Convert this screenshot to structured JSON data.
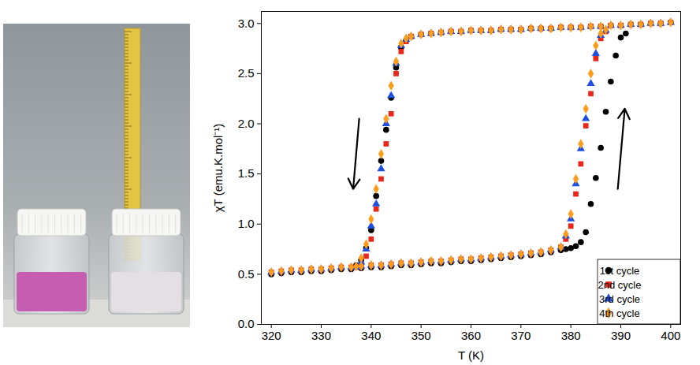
{
  "chart_data": {
    "type": "scatter",
    "xlabel": "T (K)",
    "ylabel": "χT (emu.K.mol⁻¹)",
    "xlim": [
      318,
      402
    ],
    "ylim": [
      0,
      3.12
    ],
    "xticks": [
      320,
      330,
      340,
      350,
      360,
      370,
      380,
      390,
      400
    ],
    "yticks": [
      {
        "value": 0,
        "label": "0.0"
      },
      {
        "value": 0.5,
        "label": "0.5"
      },
      {
        "value": 1,
        "label": "1.0"
      },
      {
        "value": 1.5,
        "label": "1.5"
      },
      {
        "value": 2,
        "label": "2.0"
      },
      {
        "value": 2.5,
        "label": "2.5"
      },
      {
        "value": 3,
        "label": "3.0"
      }
    ],
    "grid": false,
    "legend": "lower right",
    "arrows": [
      {
        "x1": 337.6,
        "y1": 2.05,
        "x2": 336.4,
        "y2": 1.35
      },
      {
        "x1": 389.4,
        "y1": 1.35,
        "x2": 390.8,
        "y2": 2.15
      }
    ],
    "series": [
      {
        "name": "1st cycle",
        "color": "#000000",
        "marker": "circle",
        "x": [
          320,
          322,
          324,
          326,
          328,
          330,
          332,
          334,
          336,
          338,
          340,
          342,
          344,
          346,
          348,
          350,
          352,
          354,
          356,
          358,
          360,
          362,
          364,
          366,
          368,
          370,
          372,
          374,
          376,
          378,
          379,
          380,
          381,
          382,
          383,
          384,
          385,
          386,
          387,
          388,
          389,
          390,
          391,
          400,
          398,
          396,
          394,
          392,
          390,
          388,
          386,
          384,
          382,
          380,
          378,
          376,
          374,
          372,
          370,
          368,
          366,
          364,
          362,
          360,
          358,
          356,
          354,
          352,
          350,
          348,
          347,
          346,
          345,
          344,
          343,
          342,
          341,
          340,
          339,
          338,
          337
        ],
        "values": [
          0.5,
          0.51,
          0.52,
          0.52,
          0.53,
          0.53,
          0.54,
          0.55,
          0.55,
          0.56,
          0.57,
          0.57,
          0.58,
          0.59,
          0.59,
          0.6,
          0.61,
          0.61,
          0.62,
          0.63,
          0.63,
          0.64,
          0.65,
          0.66,
          0.67,
          0.68,
          0.69,
          0.7,
          0.72,
          0.74,
          0.75,
          0.76,
          0.78,
          0.82,
          0.92,
          1.2,
          1.46,
          1.76,
          2.12,
          2.42,
          2.68,
          2.86,
          2.9,
          3.01,
          3.0,
          3.0,
          2.99,
          2.99,
          2.98,
          2.98,
          2.97,
          2.97,
          2.96,
          2.96,
          2.96,
          2.95,
          2.95,
          2.95,
          2.94,
          2.94,
          2.94,
          2.93,
          2.93,
          2.93,
          2.92,
          2.92,
          2.91,
          2.9,
          2.89,
          2.87,
          2.83,
          2.76,
          2.56,
          2.26,
          1.94,
          1.63,
          1.28,
          0.94,
          0.76,
          0.64,
          0.59
        ]
      },
      {
        "name": "2nd cycle",
        "color": "#e8261c",
        "marker": "square",
        "x": [
          320,
          322,
          324,
          326,
          328,
          330,
          332,
          334,
          336,
          338,
          340,
          342,
          344,
          346,
          348,
          350,
          352,
          354,
          356,
          358,
          360,
          362,
          364,
          366,
          368,
          370,
          372,
          374,
          376,
          378,
          379,
          380,
          381,
          382,
          383,
          384,
          385,
          386,
          387,
          400,
          398,
          396,
          394,
          392,
          390,
          388,
          386,
          384,
          382,
          380,
          378,
          376,
          374,
          372,
          370,
          368,
          366,
          364,
          362,
          360,
          358,
          356,
          354,
          352,
          350,
          348,
          347,
          346,
          345,
          344,
          343,
          342,
          341,
          340,
          339,
          338,
          337
        ],
        "values": [
          0.52,
          0.53,
          0.54,
          0.54,
          0.55,
          0.55,
          0.56,
          0.57,
          0.57,
          0.58,
          0.59,
          0.59,
          0.6,
          0.61,
          0.61,
          0.62,
          0.63,
          0.63,
          0.64,
          0.65,
          0.65,
          0.66,
          0.67,
          0.68,
          0.69,
          0.7,
          0.71,
          0.72,
          0.74,
          0.77,
          0.85,
          0.98,
          1.3,
          1.6,
          1.98,
          2.3,
          2.65,
          2.85,
          2.92,
          3.01,
          3.0,
          3.0,
          2.99,
          2.99,
          2.98,
          2.98,
          2.97,
          2.97,
          2.96,
          2.96,
          2.96,
          2.95,
          2.95,
          2.95,
          2.94,
          2.94,
          2.94,
          2.93,
          2.93,
          2.93,
          2.92,
          2.92,
          2.91,
          2.9,
          2.89,
          2.87,
          2.82,
          2.72,
          2.5,
          2.1,
          1.8,
          1.45,
          1.15,
          0.85,
          0.68,
          0.6,
          0.57
        ]
      },
      {
        "name": "3rd cycle",
        "color": "#1f4fe0",
        "marker": "triangle",
        "x": [
          320,
          322,
          324,
          326,
          328,
          330,
          332,
          334,
          336,
          338,
          340,
          342,
          344,
          346,
          348,
          350,
          352,
          354,
          356,
          358,
          360,
          362,
          364,
          366,
          368,
          370,
          372,
          374,
          376,
          378,
          379,
          380,
          381,
          382,
          383,
          384,
          385,
          386,
          387,
          400,
          398,
          396,
          394,
          392,
          390,
          388,
          386,
          384,
          382,
          380,
          378,
          376,
          374,
          372,
          370,
          368,
          366,
          364,
          362,
          360,
          358,
          356,
          354,
          352,
          350,
          348,
          347,
          346,
          345,
          344,
          343,
          342,
          341,
          340,
          339,
          338,
          337
        ],
        "values": [
          0.52,
          0.53,
          0.54,
          0.54,
          0.55,
          0.55,
          0.56,
          0.57,
          0.57,
          0.58,
          0.59,
          0.59,
          0.6,
          0.61,
          0.61,
          0.62,
          0.63,
          0.63,
          0.64,
          0.65,
          0.65,
          0.66,
          0.67,
          0.68,
          0.69,
          0.7,
          0.71,
          0.72,
          0.74,
          0.77,
          0.88,
          1.05,
          1.4,
          1.75,
          2.05,
          2.4,
          2.7,
          2.88,
          2.93,
          3.01,
          3.0,
          3.0,
          2.99,
          2.99,
          2.98,
          2.98,
          2.97,
          2.97,
          2.96,
          2.96,
          2.96,
          2.95,
          2.95,
          2.95,
          2.94,
          2.94,
          2.94,
          2.93,
          2.93,
          2.93,
          2.92,
          2.92,
          2.91,
          2.9,
          2.89,
          2.87,
          2.84,
          2.78,
          2.6,
          2.28,
          2.0,
          1.55,
          1.2,
          0.98,
          0.75,
          0.62,
          0.57
        ]
      },
      {
        "name": "4th cycle",
        "color": "#ff9d1a",
        "marker": "diamond",
        "x": [
          320,
          322,
          324,
          326,
          328,
          330,
          332,
          334,
          336,
          338,
          340,
          342,
          344,
          346,
          348,
          350,
          352,
          354,
          356,
          358,
          360,
          362,
          364,
          366,
          368,
          370,
          372,
          374,
          376,
          378,
          379,
          380,
          381,
          382,
          383,
          384,
          385,
          386,
          387,
          400,
          398,
          396,
          394,
          392,
          390,
          388,
          386,
          384,
          382,
          380,
          378,
          376,
          374,
          372,
          370,
          368,
          366,
          364,
          362,
          360,
          358,
          356,
          354,
          352,
          350,
          348,
          347,
          346,
          345,
          344,
          343,
          342,
          341,
          340,
          339,
          338,
          337
        ],
        "values": [
          0.52,
          0.53,
          0.54,
          0.54,
          0.55,
          0.55,
          0.56,
          0.57,
          0.57,
          0.58,
          0.59,
          0.59,
          0.6,
          0.61,
          0.61,
          0.62,
          0.63,
          0.63,
          0.64,
          0.65,
          0.65,
          0.66,
          0.67,
          0.68,
          0.69,
          0.7,
          0.71,
          0.72,
          0.74,
          0.77,
          0.9,
          1.1,
          1.45,
          1.8,
          2.15,
          2.5,
          2.78,
          2.9,
          2.94,
          3.01,
          3.0,
          3.0,
          2.99,
          2.99,
          2.98,
          2.98,
          2.97,
          2.97,
          2.96,
          2.96,
          2.96,
          2.95,
          2.95,
          2.95,
          2.94,
          2.94,
          2.94,
          2.93,
          2.93,
          2.93,
          2.92,
          2.92,
          2.91,
          2.9,
          2.89,
          2.87,
          2.85,
          2.8,
          2.62,
          2.38,
          2.05,
          1.7,
          1.35,
          1.05,
          0.8,
          0.66,
          0.58
        ]
      }
    ]
  }
}
